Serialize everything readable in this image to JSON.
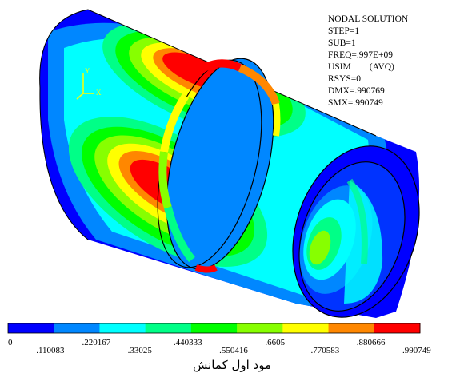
{
  "info_block": {
    "lines": [
      "NODAL SOLUTION",
      "STEP=1",
      "SUB=1",
      "FREQ=.997E+09",
      "USIM        (AVQ)",
      "RSYS=0",
      "DMX=.990769",
      "SMX=.990749"
    ]
  },
  "triad": {
    "y_label": "Y",
    "x_label": "X"
  },
  "legend": {
    "colors": [
      "#0000ff",
      "#0087ff",
      "#00ffff",
      "#00ff87",
      "#00ff00",
      "#87ff00",
      "#ffff00",
      "#ff8700",
      "#ff0000"
    ],
    "ticks": [
      "0",
      ".110083",
      ".220167",
      ".33025",
      ".440333",
      ".550416",
      ".6605",
      ".770583",
      ".880666",
      ".990749"
    ]
  },
  "caption": "مود اول کمانش"
}
